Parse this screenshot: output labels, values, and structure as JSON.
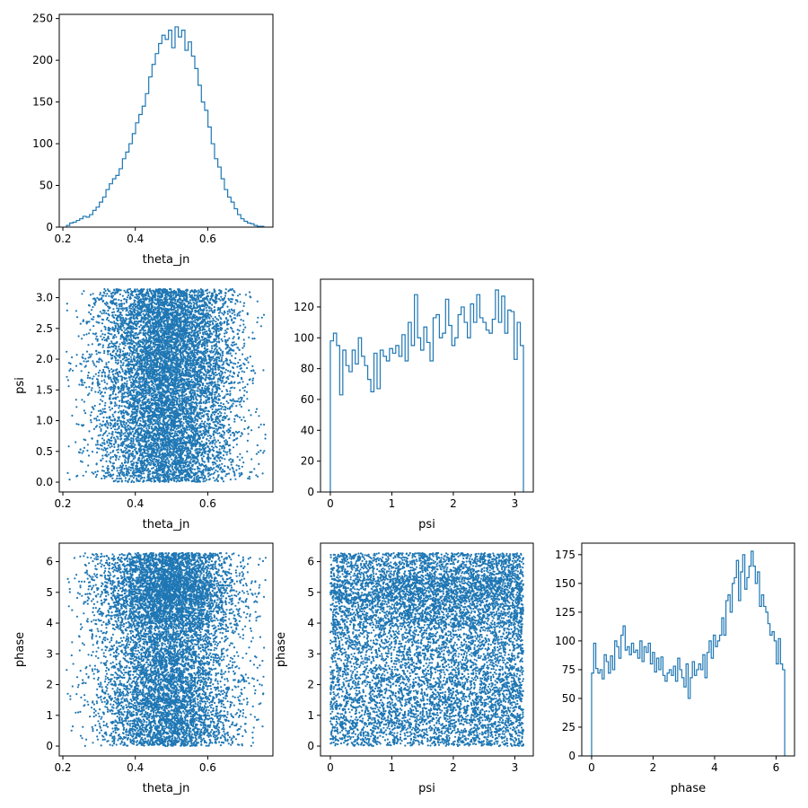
{
  "figure": {
    "background": "#ffffff",
    "series_color": "#1f77b4"
  },
  "chart_data": [
    {
      "id": "theta_jn_hist",
      "type": "histogram",
      "xlabel": "theta_jn",
      "ylabel": "",
      "xlim": [
        0.19,
        0.78
      ],
      "ylim": [
        0,
        255
      ],
      "xticks": [
        {
          "v": 0.2,
          "label": "0.2"
        },
        {
          "v": 0.4,
          "label": "0.4"
        },
        {
          "v": 0.6,
          "label": "0.6"
        }
      ],
      "yticks": [
        {
          "v": 0,
          "label": "0"
        },
        {
          "v": 50,
          "label": "50"
        },
        {
          "v": 100,
          "label": "100"
        },
        {
          "v": 150,
          "label": "150"
        },
        {
          "v": 200,
          "label": "200"
        },
        {
          "v": 250,
          "label": "250"
        }
      ],
      "bin_range": [
        0.21,
        0.755
      ],
      "counts": [
        2,
        5,
        6,
        8,
        10,
        13,
        12,
        15,
        20,
        24,
        30,
        36,
        45,
        52,
        58,
        62,
        70,
        82,
        90,
        100,
        112,
        125,
        135,
        145,
        160,
        180,
        195,
        208,
        220,
        230,
        225,
        236,
        215,
        240,
        228,
        236,
        212,
        222,
        205,
        190,
        170,
        150,
        140,
        120,
        100,
        82,
        72,
        58,
        45,
        36,
        30,
        22,
        15,
        10,
        7,
        5,
        4,
        2,
        1,
        1
      ]
    },
    {
      "id": "psi_vs_theta_jn",
      "type": "scatter",
      "xlabel": "theta_jn",
      "ylabel": "psi",
      "xlim": [
        0.19,
        0.78
      ],
      "ylim": [
        -0.16,
        3.3
      ],
      "xticks": [
        {
          "v": 0.2,
          "label": "0.2"
        },
        {
          "v": 0.4,
          "label": "0.4"
        },
        {
          "v": 0.6,
          "label": "0.6"
        }
      ],
      "yticks": [
        {
          "v": 0,
          "label": "0.0"
        },
        {
          "v": 0.5,
          "label": "0.5"
        },
        {
          "v": 1.0,
          "label": "1.0"
        },
        {
          "v": 1.5,
          "label": "1.5"
        },
        {
          "v": 2.0,
          "label": "2.0"
        },
        {
          "v": 2.5,
          "label": "2.5"
        },
        {
          "v": 3.0,
          "label": "3.0"
        }
      ],
      "n_points": 9000,
      "x_distribution": {
        "mean": 0.49,
        "std": 0.095,
        "min": 0.21,
        "max": 0.76
      },
      "y_distribution": {
        "min": 0.0,
        "max": 3.14,
        "weights": [
          0.85,
          0.95,
          1.0,
          1.05,
          1.1,
          1.1,
          1.15,
          1.1
        ]
      }
    },
    {
      "id": "psi_hist",
      "type": "histogram",
      "xlabel": "psi",
      "ylabel": "",
      "xlim": [
        -0.16,
        3.3
      ],
      "ylim": [
        0,
        138
      ],
      "xticks": [
        {
          "v": 0,
          "label": "0"
        },
        {
          "v": 1,
          "label": "1"
        },
        {
          "v": 2,
          "label": "2"
        },
        {
          "v": 3,
          "label": "3"
        }
      ],
      "yticks": [
        {
          "v": 0,
          "label": "0"
        },
        {
          "v": 20,
          "label": "20"
        },
        {
          "v": 40,
          "label": "40"
        },
        {
          "v": 60,
          "label": "60"
        },
        {
          "v": 80,
          "label": "80"
        },
        {
          "v": 100,
          "label": "100"
        },
        {
          "v": 120,
          "label": "120"
        }
      ],
      "bin_range": [
        0.0,
        3.14
      ],
      "counts": [
        98,
        103,
        95,
        63,
        92,
        82,
        78,
        92,
        83,
        100,
        88,
        82,
        73,
        65,
        90,
        67,
        92,
        88,
        85,
        93,
        90,
        95,
        88,
        102,
        85,
        110,
        95,
        128,
        100,
        92,
        107,
        97,
        85,
        113,
        115,
        100,
        103,
        125,
        108,
        95,
        100,
        115,
        120,
        110,
        100,
        122,
        110,
        128,
        113,
        110,
        105,
        103,
        112,
        131,
        110,
        127,
        103,
        118,
        117,
        86,
        110,
        95
      ]
    },
    {
      "id": "phase_vs_theta_jn",
      "type": "scatter",
      "xlabel": "theta_jn",
      "ylabel": "phase",
      "xlim": [
        0.19,
        0.78
      ],
      "ylim": [
        -0.32,
        6.6
      ],
      "xticks": [
        {
          "v": 0.2,
          "label": "0.2"
        },
        {
          "v": 0.4,
          "label": "0.4"
        },
        {
          "v": 0.6,
          "label": "0.6"
        }
      ],
      "yticks": [
        {
          "v": 0,
          "label": "0"
        },
        {
          "v": 1,
          "label": "1"
        },
        {
          "v": 2,
          "label": "2"
        },
        {
          "v": 3,
          "label": "3"
        },
        {
          "v": 4,
          "label": "4"
        },
        {
          "v": 5,
          "label": "5"
        },
        {
          "v": 6,
          "label": "6"
        }
      ],
      "n_points": 9000,
      "x_distribution": {
        "mean": 0.49,
        "std": 0.095,
        "min": 0.21,
        "max": 0.76
      },
      "y_distribution": {
        "min": 0.0,
        "max": 6.28,
        "weights": [
          0.95,
          1.0,
          0.92,
          0.82,
          0.85,
          1.25,
          1.65,
          1.2
        ]
      }
    },
    {
      "id": "phase_vs_psi",
      "type": "scatter",
      "xlabel": "psi",
      "ylabel": "phase",
      "xlim": [
        -0.16,
        3.3
      ],
      "ylim": [
        -0.32,
        6.6
      ],
      "xticks": [
        {
          "v": 0,
          "label": "0"
        },
        {
          "v": 1,
          "label": "1"
        },
        {
          "v": 2,
          "label": "2"
        },
        {
          "v": 3,
          "label": "3"
        }
      ],
      "yticks": [
        {
          "v": 0,
          "label": "0"
        },
        {
          "v": 1,
          "label": "1"
        },
        {
          "v": 2,
          "label": "2"
        },
        {
          "v": 3,
          "label": "3"
        },
        {
          "v": 4,
          "label": "4"
        },
        {
          "v": 5,
          "label": "5"
        },
        {
          "v": 6,
          "label": "6"
        }
      ],
      "n_points": 9000,
      "x_distribution": {
        "min": 0.0,
        "max": 3.14,
        "weights": [
          0.9,
          1.0,
          1.05,
          1.1,
          1.1,
          1.15
        ]
      },
      "y_distribution": {
        "min": 0.0,
        "max": 6.28,
        "weights": [
          0.95,
          1.0,
          0.92,
          0.82,
          0.85,
          1.25,
          1.65,
          1.2
        ]
      }
    },
    {
      "id": "phase_hist",
      "type": "histogram",
      "xlabel": "phase",
      "ylabel": "",
      "xlim": [
        -0.32,
        6.6
      ],
      "ylim": [
        0,
        185
      ],
      "xticks": [
        {
          "v": 0,
          "label": "0"
        },
        {
          "v": 2,
          "label": "2"
        },
        {
          "v": 4,
          "label": "4"
        },
        {
          "v": 6,
          "label": "6"
        }
      ],
      "yticks": [
        {
          "v": 0,
          "label": "0"
        },
        {
          "v": 25,
          "label": "25"
        },
        {
          "v": 50,
          "label": "50"
        },
        {
          "v": 75,
          "label": "75"
        },
        {
          "v": 100,
          "label": "100"
        },
        {
          "v": 125,
          "label": "125"
        },
        {
          "v": 150,
          "label": "150"
        },
        {
          "v": 175,
          "label": "175"
        }
      ],
      "bin_range": [
        0.0,
        6.28
      ],
      "counts": [
        72,
        98,
        76,
        72,
        75,
        67,
        88,
        82,
        72,
        87,
        75,
        100,
        95,
        85,
        105,
        113,
        92,
        95,
        88,
        98,
        90,
        92,
        85,
        100,
        82,
        95,
        90,
        98,
        80,
        90,
        73,
        85,
        75,
        86,
        70,
        65,
        72,
        75,
        70,
        78,
        65,
        85,
        75,
        68,
        60,
        80,
        50,
        68,
        82,
        70,
        75,
        80,
        75,
        88,
        68,
        90,
        100,
        85,
        105,
        95,
        100,
        105,
        120,
        105,
        135,
        140,
        125,
        150,
        155,
        170,
        135,
        160,
        175,
        145,
        155,
        165,
        178,
        165,
        150,
        160,
        130,
        140,
        130,
        125,
        115,
        105,
        108,
        100,
        80,
        102,
        80,
        75
      ]
    }
  ]
}
